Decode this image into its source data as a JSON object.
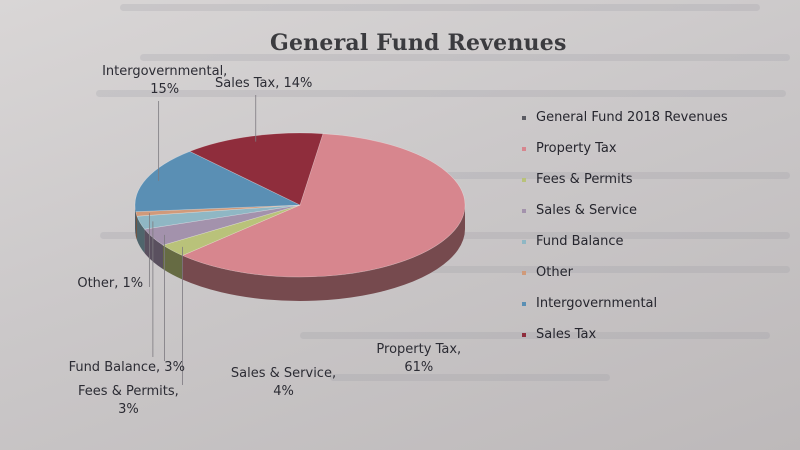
{
  "chart_data": {
    "type": "pie",
    "title": "General Fund Revenues",
    "legend_position": "right",
    "legend_title": "General Fund 2018 Revenues",
    "slices": [
      {
        "name": "Property Tax",
        "value": 61,
        "label": [
          "Property Tax,",
          "61%"
        ],
        "color": "#d7868e"
      },
      {
        "name": "Fees & Permits",
        "value": 3,
        "label": [
          "Fees & Permits,",
          "3%"
        ],
        "color": "#b9c27a"
      },
      {
        "name": "Sales & Service",
        "value": 4,
        "label": [
          "Sales & Service,",
          "4%"
        ],
        "color": "#a392ac"
      },
      {
        "name": "Fund Balance",
        "value": 3,
        "label": [
          "Fund Balance, 3%"
        ],
        "color": "#8fb7c4"
      },
      {
        "name": "Other",
        "value": 1,
        "label": [
          "Other, 1%"
        ],
        "color": "#d09a7a"
      },
      {
        "name": "Intergovernmental",
        "value": 15,
        "label": [
          "Intergovernmental,",
          "15%"
        ],
        "color": "#5a8fb4"
      },
      {
        "name": "Sales Tax",
        "value": 14,
        "label": [
          "Sales Tax, 14%"
        ],
        "color": "#8f2d3c"
      }
    ]
  }
}
